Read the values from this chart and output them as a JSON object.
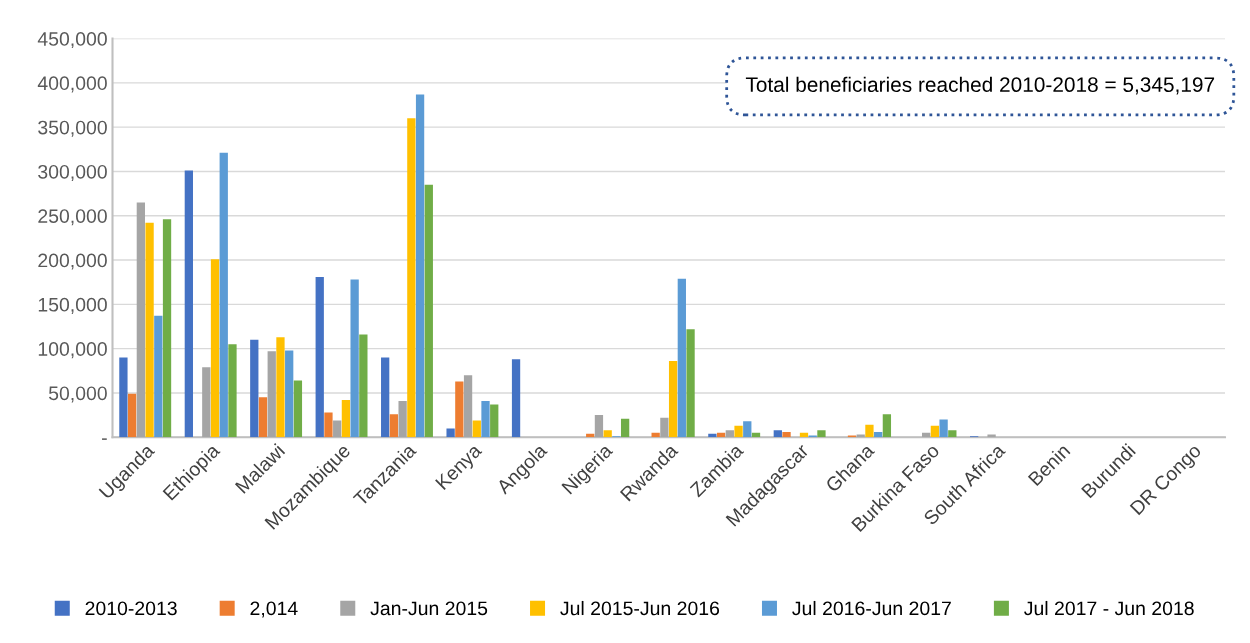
{
  "chart_data": {
    "type": "bar",
    "categories": [
      "Uganda",
      "Ethiopia",
      "Malawi",
      "Mozambique",
      "Tanzania",
      "Kenya",
      "Angola",
      "Nigeria",
      "Rwanda",
      "Zambia",
      "Madagascar",
      "Ghana",
      "Burkina Faso",
      "South Africa",
      "Benin",
      "Burundi",
      "DR Congo"
    ],
    "series": [
      {
        "name": "2010-2013",
        "color": "#4472c4",
        "values": [
          90000,
          301000,
          110000,
          181000,
          90000,
          10000,
          88000,
          null,
          null,
          4000,
          8000,
          null,
          null,
          1000,
          null,
          null,
          null
        ]
      },
      {
        "name": "2,014",
        "color": "#ed7d31",
        "values": [
          49000,
          null,
          45000,
          28000,
          26000,
          63000,
          null,
          4000,
          5000,
          5000,
          6000,
          2000,
          null,
          null,
          null,
          null,
          null
        ]
      },
      {
        "name": "Jan-Jun 2015",
        "color": "#a5a5a5",
        "values": [
          265000,
          79000,
          97000,
          19000,
          41000,
          70000,
          null,
          25000,
          22000,
          8000,
          null,
          3000,
          5000,
          3000,
          null,
          null,
          null
        ]
      },
      {
        "name": "Jul 2015-Jun 2016",
        "color": "#ffc000",
        "values": [
          242000,
          201000,
          113000,
          42000,
          360000,
          19000,
          null,
          8000,
          86000,
          13000,
          5000,
          14000,
          13000,
          null,
          null,
          null,
          null
        ]
      },
      {
        "name": "Jul 2016-Jun 2017",
        "color": "#5b9bd5",
        "values": [
          137000,
          321000,
          98000,
          178000,
          387000,
          41000,
          null,
          1000,
          179000,
          18000,
          2000,
          6000,
          20000,
          null,
          null,
          null,
          null
        ]
      },
      {
        "name": "Jul 2017 - Jun 2018",
        "color": "#70ad47",
        "values": [
          246000,
          105000,
          64000,
          116000,
          285000,
          37000,
          null,
          21000,
          122000,
          5000,
          8000,
          26000,
          8000,
          null,
          null,
          null,
          null
        ]
      }
    ],
    "ylim": [
      0,
      450000
    ],
    "yticks": [
      {
        "value": 0,
        "label": "-"
      },
      {
        "value": 50000,
        "label": "50,000"
      },
      {
        "value": 100000,
        "label": "100,000"
      },
      {
        "value": 150000,
        "label": "150,000"
      },
      {
        "value": 200000,
        "label": "200,000"
      },
      {
        "value": 250000,
        "label": "250,000"
      },
      {
        "value": 300000,
        "label": "300,000"
      },
      {
        "value": 350000,
        "label": "350,000"
      },
      {
        "value": 400000,
        "label": "400,000"
      },
      {
        "value": 450000,
        "label": "450,000"
      }
    ],
    "grid": "y",
    "legend": "bottom",
    "annotations": [
      "Total beneficiaries reached 2010-2018 = 5,345,197"
    ]
  }
}
